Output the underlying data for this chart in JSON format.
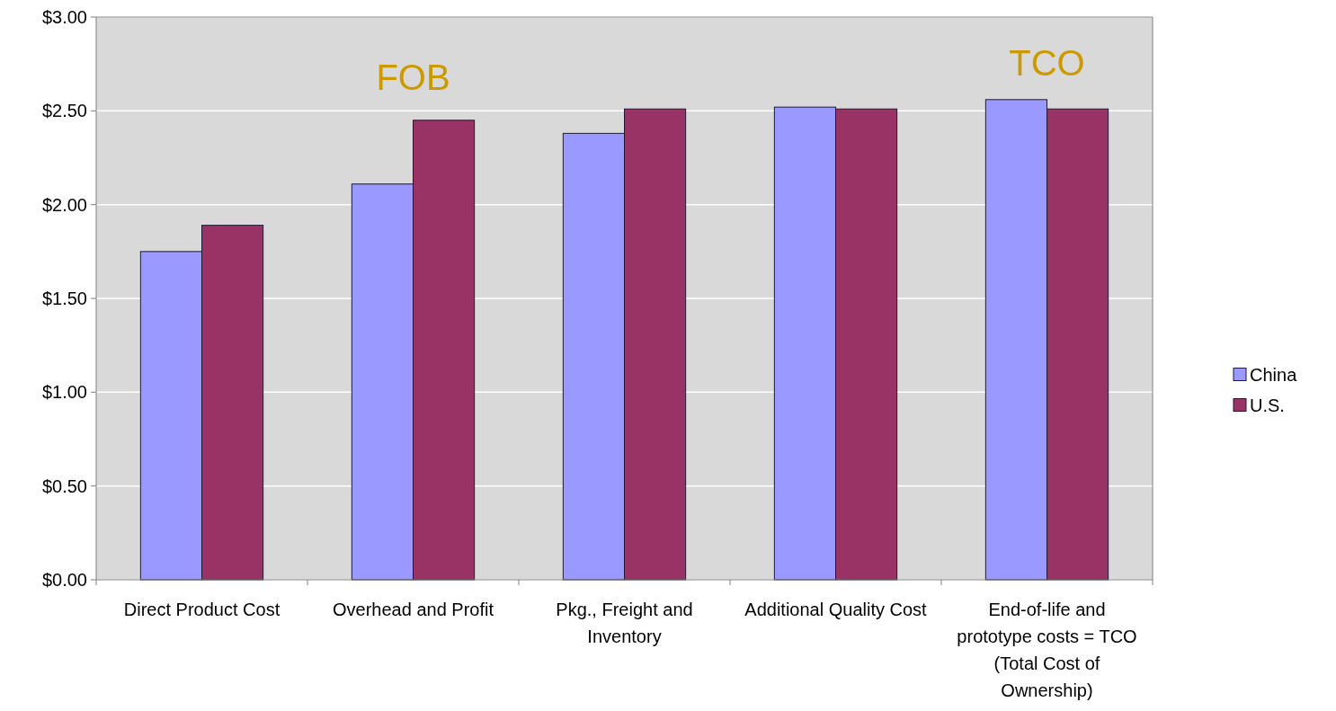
{
  "chart_data": {
    "type": "bar",
    "categories": [
      "Direct Product Cost",
      "Overhead and Profit",
      "Pkg., Freight and Inventory",
      "Additional Quality Cost",
      "End-of-life and prototype costs = TCO (Total Cost of Ownership)"
    ],
    "series": [
      {
        "name": "China",
        "color": "#9999ff",
        "values": [
          1.75,
          2.11,
          2.38,
          2.52,
          2.56
        ]
      },
      {
        "name": "U.S.",
        "color": "#993366",
        "values": [
          1.89,
          2.45,
          2.51,
          2.51,
          2.51
        ]
      }
    ],
    "ylim": [
      0,
      3
    ],
    "yticks": [
      {
        "value": 0,
        "label": "$0.00"
      },
      {
        "value": 0.5,
        "label": "$0.50"
      },
      {
        "value": 1,
        "label": "$1.00"
      },
      {
        "value": 1.5,
        "label": "$1.50"
      },
      {
        "value": 2,
        "label": "$2.00"
      },
      {
        "value": 2.5,
        "label": "$2.50"
      },
      {
        "value": 3,
        "label": "$3.00"
      }
    ],
    "grid": "y",
    "legend": "right",
    "annotations": [
      "FOB",
      "TCO"
    ]
  }
}
